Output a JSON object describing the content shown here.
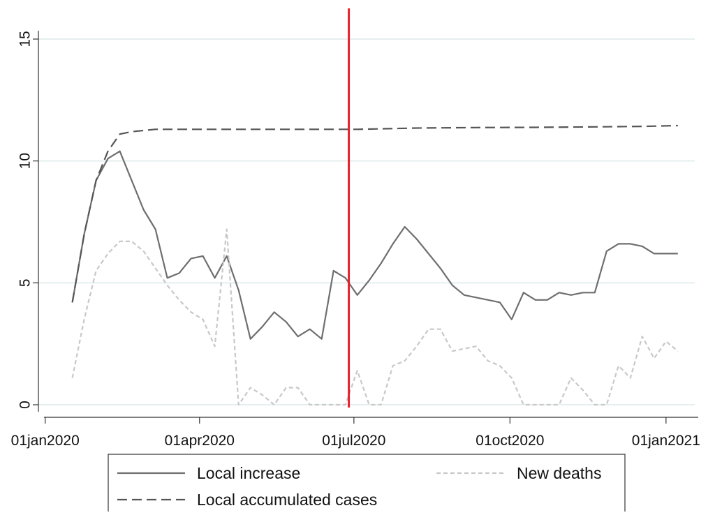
{
  "chart_data": {
    "type": "line",
    "x_ticks": [
      "01jan2020",
      "01apr2020",
      "01jul2020",
      "01oct2020",
      "01jan2021"
    ],
    "y_ticks": [
      "0",
      "5",
      "10",
      "15"
    ],
    "ylim": [
      0,
      15
    ],
    "xlim": [
      "2019-12-28",
      "2021-01-20"
    ],
    "grid": "horizontal",
    "legend_position": "bottom",
    "vline": {
      "date": "2020-06-28",
      "color": "#e8202a"
    },
    "colors": {
      "local_increase": "#6e6e6e",
      "local_accumulated": "#555555",
      "new_deaths": "#c8c8c8",
      "grid": "#dde9ea"
    },
    "series": [
      {
        "name": "Local increase",
        "style": "solid",
        "points": [
          [
            "2020-01-17",
            4.2
          ],
          [
            "2020-01-24",
            7.0
          ],
          [
            "2020-01-31",
            9.2
          ],
          [
            "2020-02-07",
            10.1
          ],
          [
            "2020-02-14",
            10.4
          ],
          [
            "2020-02-21",
            9.2
          ],
          [
            "2020-02-28",
            8.0
          ],
          [
            "2020-03-06",
            7.2
          ],
          [
            "2020-03-13",
            5.2
          ],
          [
            "2020-03-20",
            5.4
          ],
          [
            "2020-03-27",
            6.0
          ],
          [
            "2020-04-03",
            6.1
          ],
          [
            "2020-04-10",
            5.2
          ],
          [
            "2020-04-17",
            6.1
          ],
          [
            "2020-04-24",
            4.7
          ],
          [
            "2020-05-01",
            2.7
          ],
          [
            "2020-05-08",
            3.2
          ],
          [
            "2020-05-15",
            3.8
          ],
          [
            "2020-05-22",
            3.4
          ],
          [
            "2020-05-29",
            2.8
          ],
          [
            "2020-06-05",
            3.1
          ],
          [
            "2020-06-12",
            2.7
          ],
          [
            "2020-06-19",
            5.5
          ],
          [
            "2020-06-26",
            5.2
          ],
          [
            "2020-07-03",
            4.5
          ],
          [
            "2020-07-10",
            5.1
          ],
          [
            "2020-07-17",
            5.8
          ],
          [
            "2020-07-24",
            6.6
          ],
          [
            "2020-07-31",
            7.3
          ],
          [
            "2020-08-07",
            6.8
          ],
          [
            "2020-08-14",
            6.2
          ],
          [
            "2020-08-21",
            5.6
          ],
          [
            "2020-08-28",
            4.9
          ],
          [
            "2020-09-04",
            4.5
          ],
          [
            "2020-09-11",
            4.4
          ],
          [
            "2020-09-18",
            4.3
          ],
          [
            "2020-09-25",
            4.2
          ],
          [
            "2020-10-02",
            3.5
          ],
          [
            "2020-10-09",
            4.6
          ],
          [
            "2020-10-16",
            4.3
          ],
          [
            "2020-10-23",
            4.3
          ],
          [
            "2020-10-30",
            4.6
          ],
          [
            "2020-11-06",
            4.5
          ],
          [
            "2020-11-13",
            4.6
          ],
          [
            "2020-11-20",
            4.6
          ],
          [
            "2020-11-27",
            6.3
          ],
          [
            "2020-12-04",
            6.6
          ],
          [
            "2020-12-11",
            6.6
          ],
          [
            "2020-12-18",
            6.5
          ],
          [
            "2020-12-25",
            6.2
          ],
          [
            "2021-01-01",
            6.2
          ],
          [
            "2021-01-08",
            6.2
          ]
        ]
      },
      {
        "name": "Local accumulated cases",
        "style": "dashed",
        "points": [
          [
            "2020-01-17",
            4.2
          ],
          [
            "2020-01-24",
            7.0
          ],
          [
            "2020-01-31",
            9.2
          ],
          [
            "2020-02-07",
            10.4
          ],
          [
            "2020-02-14",
            11.1
          ],
          [
            "2020-02-21",
            11.2
          ],
          [
            "2020-03-06",
            11.3
          ],
          [
            "2020-04-03",
            11.3
          ],
          [
            "2020-05-01",
            11.3
          ],
          [
            "2020-06-05",
            11.3
          ],
          [
            "2020-07-03",
            11.3
          ],
          [
            "2020-08-07",
            11.35
          ],
          [
            "2020-09-11",
            11.37
          ],
          [
            "2020-10-16",
            11.38
          ],
          [
            "2020-11-20",
            11.4
          ],
          [
            "2020-12-18",
            11.42
          ],
          [
            "2021-01-08",
            11.45
          ]
        ]
      },
      {
        "name": "New deaths",
        "style": "dotted",
        "points": [
          [
            "2020-01-17",
            1.1
          ],
          [
            "2020-01-24",
            3.5
          ],
          [
            "2020-01-31",
            5.5
          ],
          [
            "2020-02-07",
            6.2
          ],
          [
            "2020-02-14",
            6.7
          ],
          [
            "2020-02-21",
            6.7
          ],
          [
            "2020-02-28",
            6.3
          ],
          [
            "2020-03-06",
            5.6
          ],
          [
            "2020-03-13",
            4.9
          ],
          [
            "2020-03-20",
            4.3
          ],
          [
            "2020-03-27",
            3.8
          ],
          [
            "2020-04-03",
            3.5
          ],
          [
            "2020-04-10",
            2.4
          ],
          [
            "2020-04-17",
            7.2
          ],
          [
            "2020-04-24",
            0.0
          ],
          [
            "2020-05-01",
            0.7
          ],
          [
            "2020-05-08",
            0.4
          ],
          [
            "2020-05-15",
            0.0
          ],
          [
            "2020-05-22",
            0.7
          ],
          [
            "2020-05-29",
            0.7
          ],
          [
            "2020-06-05",
            0.0
          ],
          [
            "2020-06-12",
            0.0
          ],
          [
            "2020-06-19",
            0.0
          ],
          [
            "2020-06-26",
            0.0
          ],
          [
            "2020-07-03",
            1.4
          ],
          [
            "2020-07-10",
            0.0
          ],
          [
            "2020-07-17",
            0.0
          ],
          [
            "2020-07-24",
            1.6
          ],
          [
            "2020-07-31",
            1.8
          ],
          [
            "2020-08-07",
            2.4
          ],
          [
            "2020-08-14",
            3.1
          ],
          [
            "2020-08-21",
            3.1
          ],
          [
            "2020-08-28",
            2.2
          ],
          [
            "2020-09-04",
            2.3
          ],
          [
            "2020-09-11",
            2.4
          ],
          [
            "2020-09-18",
            1.8
          ],
          [
            "2020-09-25",
            1.6
          ],
          [
            "2020-10-02",
            1.1
          ],
          [
            "2020-10-09",
            0.0
          ],
          [
            "2020-10-16",
            0.0
          ],
          [
            "2020-10-23",
            0.0
          ],
          [
            "2020-10-30",
            0.0
          ],
          [
            "2020-11-06",
            1.1
          ],
          [
            "2020-11-13",
            0.6
          ],
          [
            "2020-11-20",
            0.0
          ],
          [
            "2020-11-27",
            0.0
          ],
          [
            "2020-12-04",
            1.6
          ],
          [
            "2020-12-11",
            1.1
          ],
          [
            "2020-12-18",
            2.8
          ],
          [
            "2020-12-25",
            1.9
          ],
          [
            "2021-01-01",
            2.6
          ],
          [
            "2021-01-08",
            2.2
          ]
        ]
      }
    ]
  }
}
